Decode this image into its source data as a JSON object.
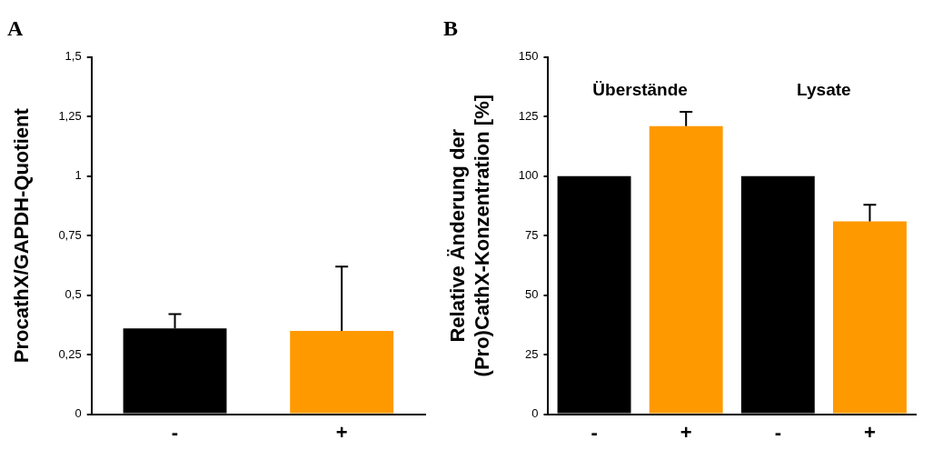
{
  "chart_data": [
    {
      "type": "bar",
      "title": "A",
      "ylabel": "ProcathX/GAPDH-Quotient",
      "categories": [
        "-",
        "+"
      ],
      "values": [
        0.36,
        0.35
      ],
      "colors": [
        "#000000",
        "#ff9900"
      ],
      "errors": [
        0.06,
        0.27
      ],
      "ylim": [
        0,
        1.5
      ],
      "yticks": [
        0,
        {
          "value": 0.25,
          "label": "0,25"
        },
        {
          "value": 0.5,
          "label": "0,5"
        },
        {
          "value": 0.75,
          "label": "0,75"
        },
        1,
        {
          "value": 1.25,
          "label": "1,25"
        },
        {
          "value": 1.5,
          "label": "1,5"
        }
      ],
      "grid": false
    },
    {
      "type": "bar",
      "title": "B",
      "ylabel": "Relative Änderung der\n(Pro)CathX-Konzentration [%]",
      "categories": [
        "-",
        "+",
        "-",
        "+"
      ],
      "values": [
        100,
        121,
        100,
        81
      ],
      "colors": [
        "#000000",
        "#ff9900",
        "#000000",
        "#ff9900"
      ],
      "errors": [
        null,
        6,
        null,
        7
      ],
      "ylim": [
        0,
        150
      ],
      "yticks": [
        0,
        25,
        50,
        75,
        100,
        125,
        150
      ],
      "grid": false,
      "annotations": [
        "Überstände",
        "Lysate"
      ]
    }
  ]
}
